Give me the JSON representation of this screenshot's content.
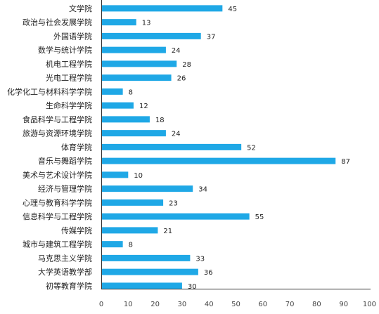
{
  "chart_data": {
    "type": "bar",
    "orientation": "horizontal",
    "title": "",
    "xlabel": "",
    "ylabel": "",
    "xlim": [
      0,
      100
    ],
    "xticks": [
      0,
      10,
      20,
      30,
      40,
      50,
      60,
      70,
      80,
      90,
      100
    ],
    "grid": false,
    "legend": "none",
    "bar_color": "#1fa8e6",
    "data_labels": true,
    "categories": [
      "文学院",
      "政治与社会发展学院",
      "外国语学院",
      "数学与统计学院",
      "机电工程学院",
      "光电工程学院",
      "化学化工与材料科学学院",
      "生命科学学院",
      "食品科学与工程学院",
      "旅游与资源环境学院",
      "体育学院",
      "音乐与舞蹈学院",
      "美术与艺术设计学院",
      "经济与管理学院",
      "心理与教育科学学院",
      "信息科学与工程学院",
      "传媒学院",
      "城市与建筑工程学院",
      "马克思主义学院",
      "大学英语教学部",
      "初等教育学院"
    ],
    "values": [
      45,
      13,
      37,
      24,
      28,
      26,
      8,
      12,
      18,
      24,
      52,
      87,
      10,
      34,
      23,
      55,
      21,
      8,
      33,
      36,
      30
    ]
  }
}
